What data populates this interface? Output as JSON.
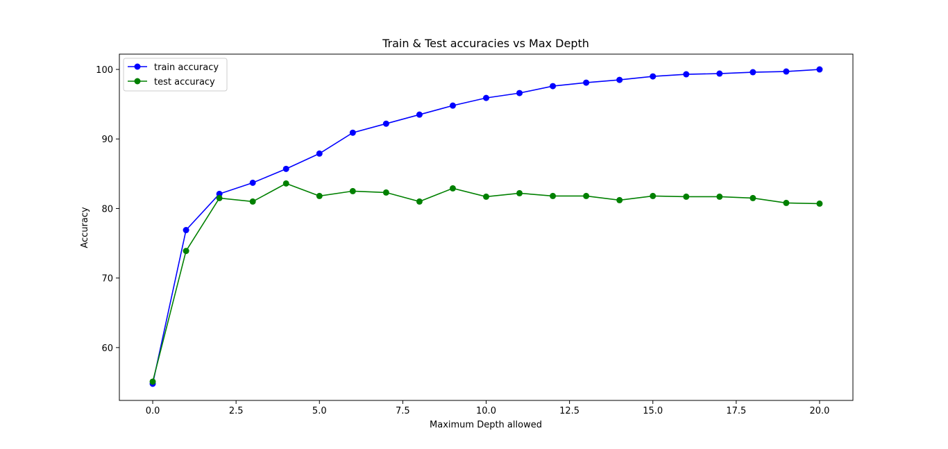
{
  "chart_data": {
    "type": "line",
    "title": "Train & Test accuracies vs Max Depth",
    "xlabel": "Maximum Depth allowed",
    "ylabel": "Accuracy",
    "xlim": [
      -1.0,
      21.0
    ],
    "ylim": [
      52.4,
      102.2
    ],
    "xticks": [
      0.0,
      2.5,
      5.0,
      7.5,
      10.0,
      12.5,
      15.0,
      17.5,
      20.0
    ],
    "xtick_labels": [
      "0.0",
      "2.5",
      "5.0",
      "7.5",
      "10.0",
      "12.5",
      "15.0",
      "17.5",
      "20.0"
    ],
    "yticks": [
      60,
      70,
      80,
      90,
      100
    ],
    "ytick_labels": [
      "60",
      "70",
      "80",
      "90",
      "100"
    ],
    "grid": false,
    "legend_position": "top-left",
    "x": [
      0,
      1,
      2,
      3,
      4,
      5,
      6,
      7,
      8,
      9,
      10,
      11,
      12,
      13,
      14,
      15,
      16,
      17,
      18,
      19,
      20
    ],
    "series": [
      {
        "name": "train accuracy",
        "color": "#0000ff",
        "values": [
          54.8,
          76.9,
          82.1,
          83.7,
          85.7,
          87.9,
          90.9,
          92.2,
          93.5,
          94.8,
          95.9,
          96.6,
          97.6,
          98.1,
          98.5,
          99.0,
          99.3,
          99.4,
          99.6,
          99.7,
          100.0
        ]
      },
      {
        "name": "test accuracy",
        "color": "#008000",
        "values": [
          55.1,
          73.9,
          81.5,
          81.0,
          83.6,
          81.8,
          82.5,
          82.3,
          81.0,
          82.9,
          81.7,
          82.2,
          81.8,
          81.8,
          81.2,
          81.8,
          81.7,
          81.7,
          81.5,
          80.8,
          80.7
        ]
      }
    ]
  }
}
